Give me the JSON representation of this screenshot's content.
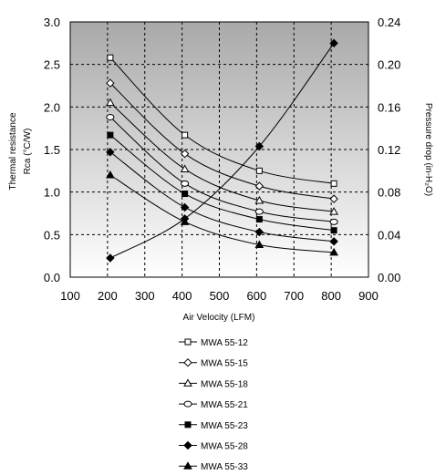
{
  "chart_data": {
    "type": "line",
    "xlabel": "Air Velocity (LFM)",
    "ylabel_left": [
      "Thermal resistance",
      "Rca (°C/W)"
    ],
    "ylabel_right": "Pressure drop (in-H₂O)",
    "xlim": [
      100,
      900
    ],
    "xticks": [
      "100",
      "200",
      "300",
      "400",
      "500",
      "600",
      "700",
      "800",
      "900"
    ],
    "ylim_left": [
      0.0,
      3.0
    ],
    "yticks_left": [
      "0.0",
      "0.5",
      "1.0",
      "1.5",
      "2.0",
      "2.5",
      "3.0"
    ],
    "ylim_right": [
      0.0,
      0.24
    ],
    "yticks_right": [
      "0.00",
      "0.04",
      "0.08",
      "0.12",
      "0.16",
      "0.20",
      "0.24"
    ],
    "grid": true,
    "legend_position": "bottom",
    "x": [
      200,
      400,
      600,
      800
    ],
    "series": [
      {
        "name": "MWA 55-12",
        "marker": "square-open",
        "values": [
          2.58,
          1.67,
          1.25,
          1.1
        ]
      },
      {
        "name": "MWA 55-15",
        "marker": "diamond-open",
        "values": [
          2.28,
          1.45,
          1.07,
          0.92
        ]
      },
      {
        "name": "MWA 55-18",
        "marker": "triangle-open",
        "values": [
          2.05,
          1.27,
          0.9,
          0.77
        ]
      },
      {
        "name": "MWA 55-21",
        "marker": "circle-open",
        "values": [
          1.88,
          1.1,
          0.77,
          0.65
        ]
      },
      {
        "name": "MWA 55-23",
        "marker": "square-filled",
        "values": [
          1.67,
          0.98,
          0.68,
          0.55
        ]
      },
      {
        "name": "MWA 55-28",
        "marker": "diamond-filled",
        "values": [
          1.47,
          0.82,
          0.53,
          0.42
        ]
      },
      {
        "name": "MWA 55-33",
        "marker": "triangle-filled",
        "values": [
          1.2,
          0.65,
          0.38,
          0.29
        ]
      }
    ],
    "pressure_series": {
      "axis": "right",
      "marker": "diamond-filled",
      "values": [
        0.018,
        0.055,
        0.123,
        0.22
      ]
    }
  }
}
